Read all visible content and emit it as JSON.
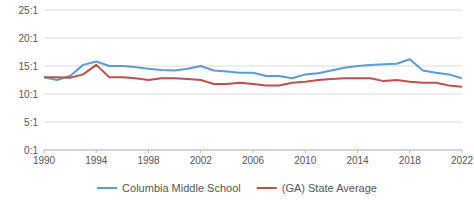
{
  "chart_data": {
    "type": "line",
    "x": [
      1990,
      1991,
      1992,
      1993,
      1994,
      1995,
      1996,
      1997,
      1998,
      1999,
      2000,
      2001,
      2002,
      2003,
      2004,
      2005,
      2006,
      2007,
      2008,
      2009,
      2010,
      2011,
      2012,
      2013,
      2014,
      2015,
      2016,
      2017,
      2018,
      2019,
      2020,
      2021,
      2022
    ],
    "series": [
      {
        "name": "Columbia Middle School",
        "color": "#5b9bd5",
        "values": [
          13.0,
          12.5,
          13.2,
          15.2,
          15.8,
          15.0,
          15.0,
          14.8,
          14.5,
          14.3,
          14.2,
          14.5,
          15.0,
          14.2,
          14.0,
          13.8,
          13.8,
          13.2,
          13.2,
          12.8,
          13.5,
          13.7,
          14.2,
          14.7,
          15.0,
          15.2,
          15.3,
          15.4,
          16.2,
          14.2,
          13.8,
          13.5,
          12.8
        ]
      },
      {
        "name": "(GA) State Average",
        "color": "#c0504d",
        "values": [
          13.0,
          13.0,
          12.9,
          13.5,
          15.2,
          13.0,
          13.0,
          12.8,
          12.5,
          12.8,
          12.8,
          12.7,
          12.5,
          11.8,
          11.8,
          12.0,
          11.8,
          11.5,
          11.5,
          12.0,
          12.2,
          12.5,
          12.7,
          12.8,
          12.8,
          12.8,
          12.3,
          12.5,
          12.2,
          12.0,
          12.0,
          11.5,
          11.3
        ]
      }
    ],
    "xlim": [
      1990,
      2022
    ],
    "ylim": [
      0,
      25
    ],
    "xticks": [
      1990,
      1994,
      1998,
      2002,
      2006,
      2010,
      2014,
      2018,
      2022
    ],
    "yticks": [
      {
        "value": 0,
        "label": "0:1"
      },
      {
        "value": 5,
        "label": "5:1"
      },
      {
        "value": 10,
        "label": "10:1"
      },
      {
        "value": 15,
        "label": "15:1"
      },
      {
        "value": 20,
        "label": "20:1"
      },
      {
        "value": 25,
        "label": "25:1"
      }
    ],
    "grid": true,
    "legend": "bottom"
  }
}
